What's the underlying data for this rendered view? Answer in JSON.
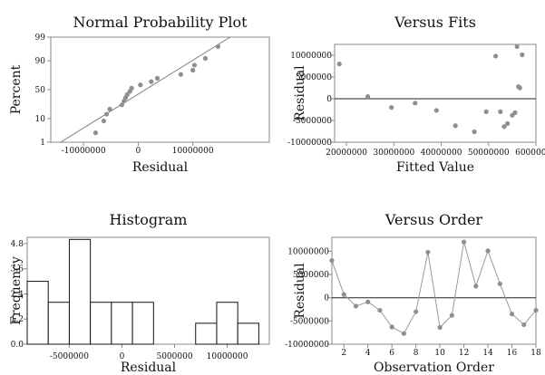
{
  "chart_data": [
    {
      "type": "scatter",
      "title": "Normal Probability Plot",
      "xlabel": "Residual",
      "ylabel": "Percent",
      "xlim": [
        -16000000,
        24000000
      ],
      "x_ticks": [
        -10000000,
        0,
        10000000
      ],
      "x_tick_labels": [
        "-10000000",
        "0",
        "10000000"
      ],
      "y_ticks": [
        1,
        10,
        50,
        90,
        99
      ],
      "y_tick_labels": [
        "1",
        "10",
        "50",
        "90",
        "99"
      ],
      "y_scale": "normal-probability",
      "fit_line": true,
      "points": [
        [
          -7800000,
          2.8
        ],
        [
          -6300000,
          8.3
        ],
        [
          -5800000,
          13.9
        ],
        [
          -5200000,
          19.4
        ],
        [
          -3000000,
          25
        ],
        [
          -2600000,
          30.6
        ],
        [
          -2300000,
          36.1
        ],
        [
          -2000000,
          41.7
        ],
        [
          -1500000,
          47.2
        ],
        [
          -1200000,
          52.8
        ],
        [
          400000,
          58.3
        ],
        [
          2400000,
          63.9
        ],
        [
          3500000,
          69.4
        ],
        [
          7800000,
          75
        ],
        [
          10000000,
          80.6
        ],
        [
          10300000,
          86.1
        ],
        [
          12300000,
          91.7
        ],
        [
          14600000,
          97.2
        ]
      ]
    },
    {
      "type": "scatter",
      "title": "Versus Fits",
      "xlabel": "Fitted Value",
      "ylabel": "Residual",
      "xlim": [
        17500000,
        60000000
      ],
      "ylim": [
        -10000000,
        12500000
      ],
      "x_ticks": [
        20000000,
        30000000,
        40000000,
        50000000,
        60000000
      ],
      "x_tick_labels": [
        "20000000",
        "30000000",
        "40000000",
        "50000000",
        "60000000"
      ],
      "y_ticks": [
        -10000000,
        -5000000,
        0,
        5000000,
        10000000
      ],
      "y_tick_labels": [
        "-10000000",
        "-5000000",
        "0",
        "5000000",
        "10000000"
      ],
      "reference_line": 0,
      "points": [
        [
          18500000,
          8000000
        ],
        [
          24500000,
          500000
        ],
        [
          29500000,
          -2000000
        ],
        [
          34500000,
          -1000000
        ],
        [
          39000000,
          -2700000
        ],
        [
          43000000,
          -6200000
        ],
        [
          47000000,
          -7600000
        ],
        [
          49500000,
          -3000000
        ],
        [
          51500000,
          9800000
        ],
        [
          52500000,
          -3000000
        ],
        [
          53300000,
          -6400000
        ],
        [
          54000000,
          -5700000
        ],
        [
          55000000,
          -3800000
        ],
        [
          55600000,
          -3200000
        ],
        [
          56000000,
          12000000
        ],
        [
          56300000,
          2800000
        ],
        [
          56600000,
          2500000
        ],
        [
          57100000,
          10100000
        ]
      ]
    },
    {
      "type": "bar",
      "title": "Histogram",
      "xlabel": "Residual",
      "ylabel": "Frequency",
      "xlim": [
        -9000000,
        14000000
      ],
      "ylim": [
        0,
        5.1
      ],
      "x_ticks": [
        -5000000,
        0,
        5000000,
        10000000
      ],
      "x_tick_labels": [
        "-5000000",
        "0",
        "5000000",
        "10000000"
      ],
      "y_ticks": [
        0,
        1.2,
        2.4,
        3.6,
        4.8
      ],
      "y_tick_labels": [
        "0.0",
        "1.2",
        "2.4",
        "3.6",
        "4.8"
      ],
      "bin_width": 2000000,
      "bin_centers": [
        -8000000,
        -6000000,
        -4000000,
        -2000000,
        0,
        2000000,
        4000000,
        6000000,
        8000000,
        10000000,
        12000000
      ],
      "values": [
        3,
        2,
        5,
        2,
        2,
        2,
        0,
        0,
        1,
        2,
        1
      ]
    },
    {
      "type": "line",
      "title": "Versus Order",
      "xlabel": "Observation Order",
      "ylabel": "Residual",
      "xlim": [
        1,
        18
      ],
      "ylim": [
        -10000000,
        13000000
      ],
      "x_ticks": [
        2,
        4,
        6,
        8,
        10,
        12,
        14,
        16,
        18
      ],
      "x_tick_labels": [
        "2",
        "4",
        "6",
        "8",
        "10",
        "12",
        "14",
        "16",
        "18"
      ],
      "y_ticks": [
        -10000000,
        -5000000,
        0,
        5000000,
        10000000
      ],
      "y_tick_labels": [
        "-10000000",
        "-5000000",
        "0",
        "5000000",
        "10000000"
      ],
      "reference_line": 0,
      "x": [
        1,
        2,
        3,
        4,
        5,
        6,
        7,
        8,
        9,
        10,
        11,
        12,
        13,
        14,
        15,
        16,
        17,
        18
      ],
      "values": [
        8000000,
        700000,
        -1800000,
        -900000,
        -2700000,
        -6300000,
        -7700000,
        -3000000,
        9800000,
        -6400000,
        -3800000,
        12000000,
        2500000,
        10100000,
        3000000,
        -3500000,
        -5800000,
        -2700000
      ]
    }
  ]
}
